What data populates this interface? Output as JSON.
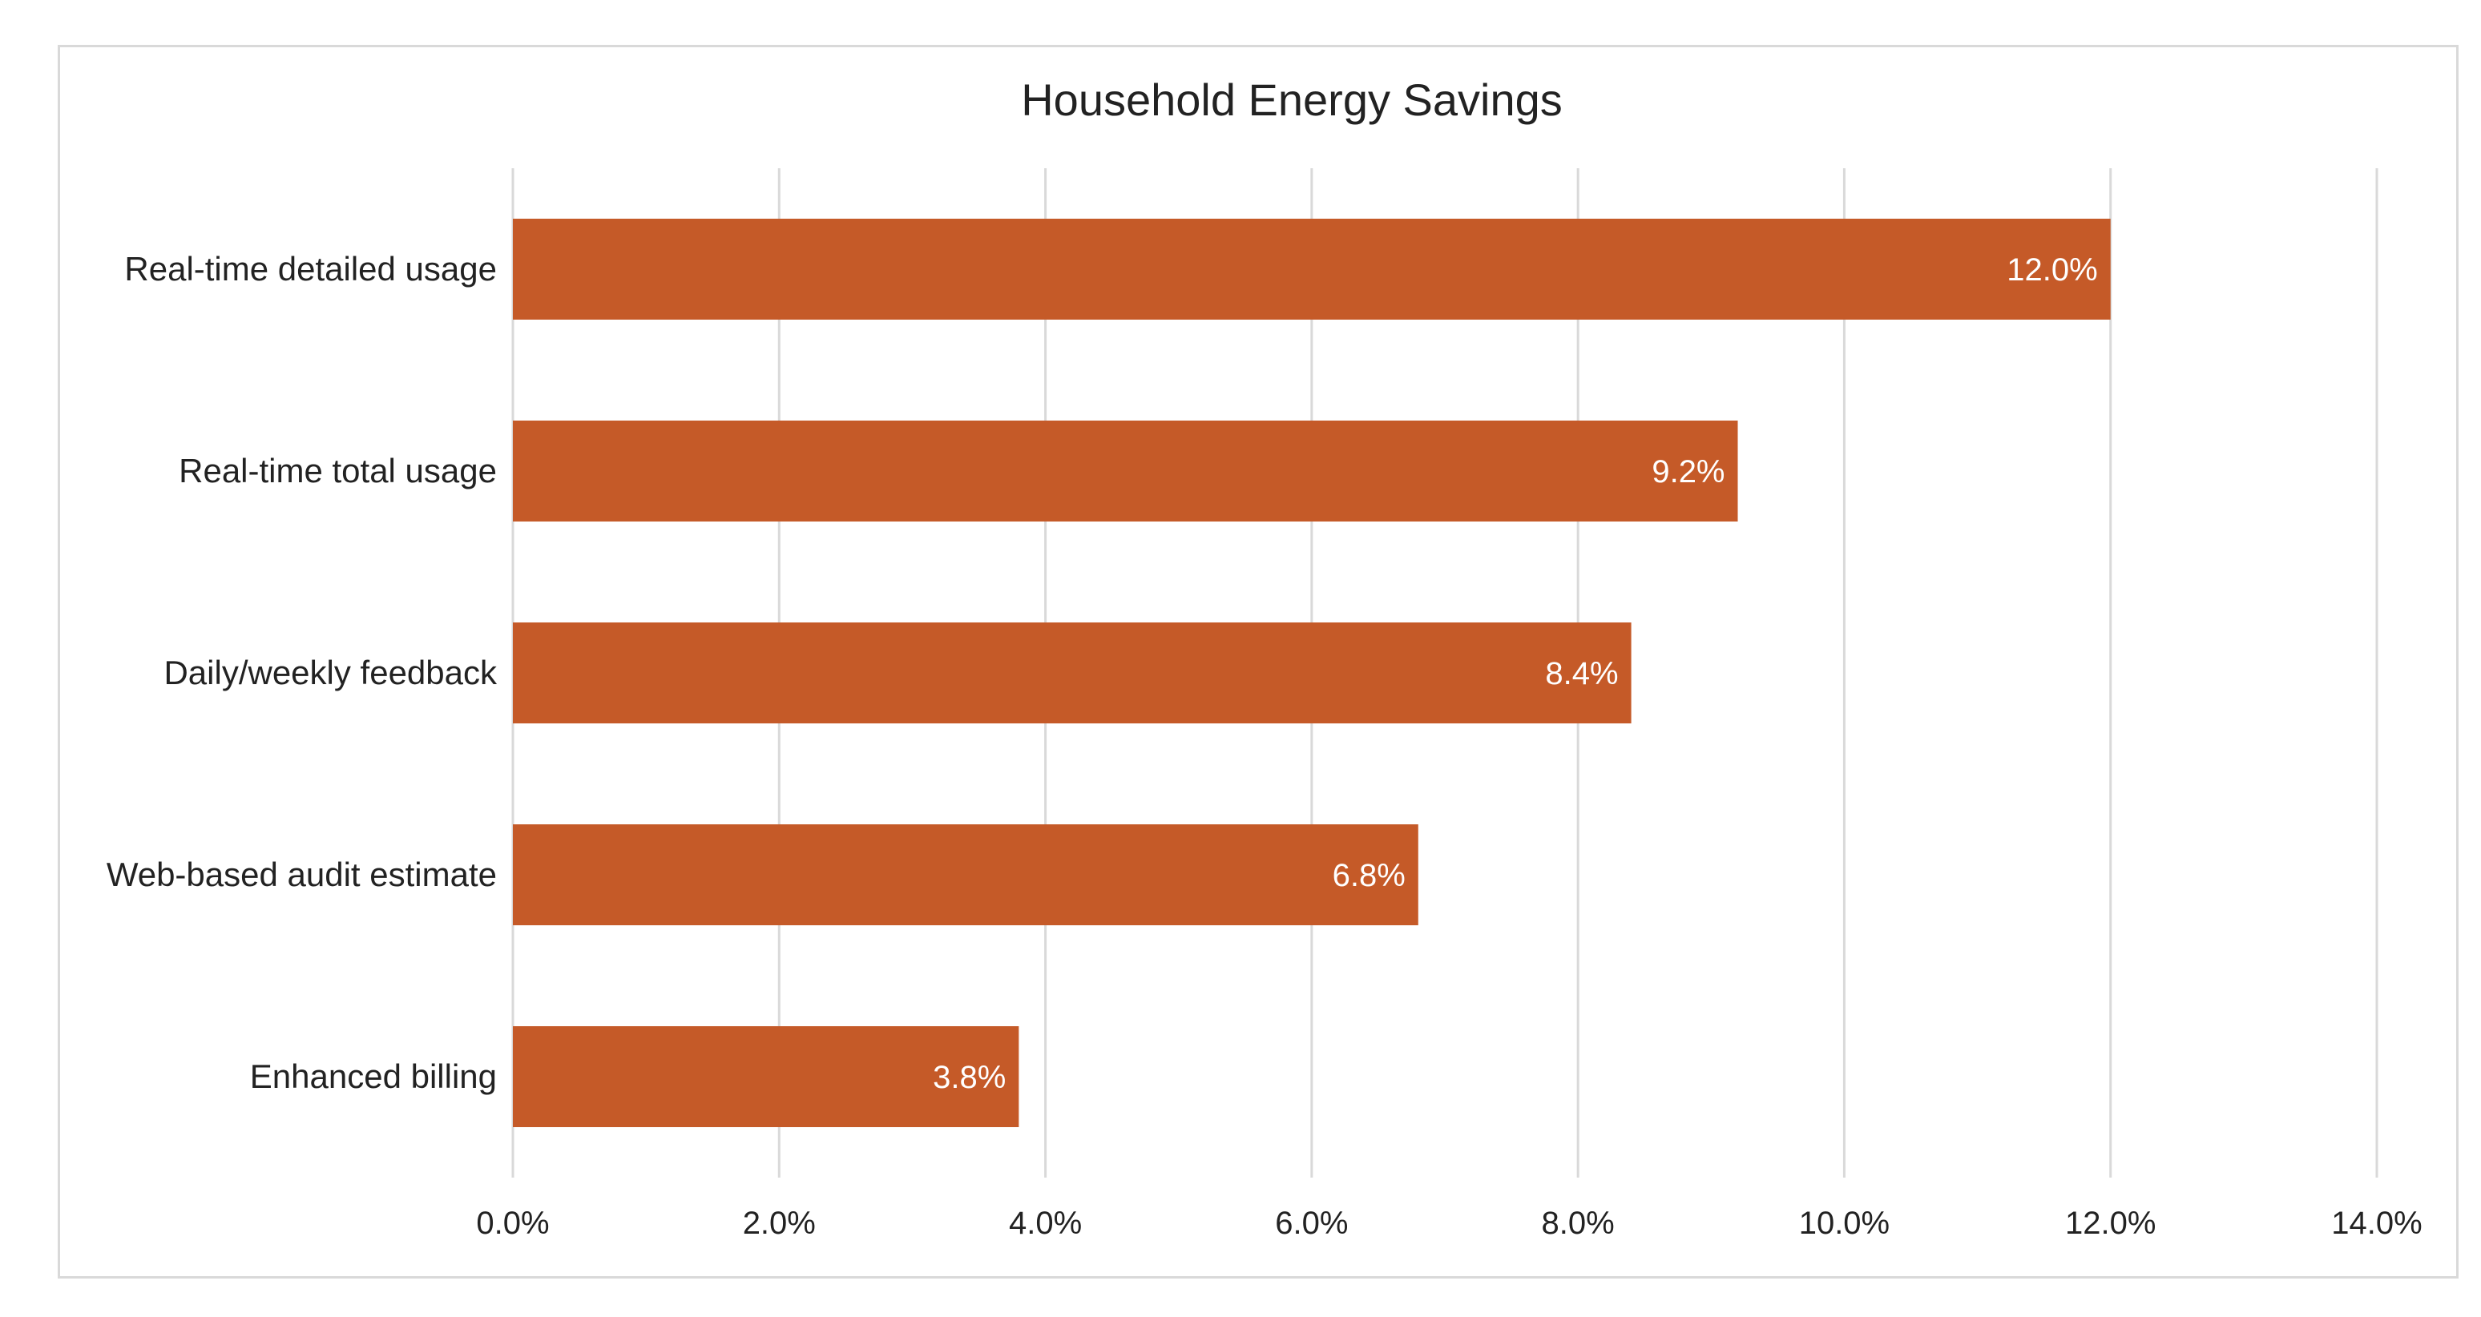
{
  "chart_data": {
    "type": "bar",
    "orientation": "horizontal",
    "title": "Household Energy Savings",
    "categories": [
      "Real-time detailed usage",
      "Real-time total usage",
      "Daily/weekly feedback",
      "Web-based audit estimate",
      "Enhanced billing"
    ],
    "values": [
      12.0,
      9.2,
      8.4,
      6.8,
      3.8
    ],
    "data_labels": [
      "12.0%",
      "9.2%",
      "8.4%",
      "6.8%",
      "3.8%"
    ],
    "xlabel": "",
    "ylabel": "",
    "xlim": [
      0,
      14
    ],
    "x_ticks": [
      0,
      2,
      4,
      6,
      8,
      10,
      12,
      14
    ],
    "x_tick_labels": [
      "0.0%",
      "2.0%",
      "4.0%",
      "6.0%",
      "8.0%",
      "10.0%",
      "12.0%",
      "14.0%"
    ],
    "grid": true,
    "legend": "none",
    "bar_color": "#C55A28",
    "grid_color": "#D9D9D9"
  }
}
